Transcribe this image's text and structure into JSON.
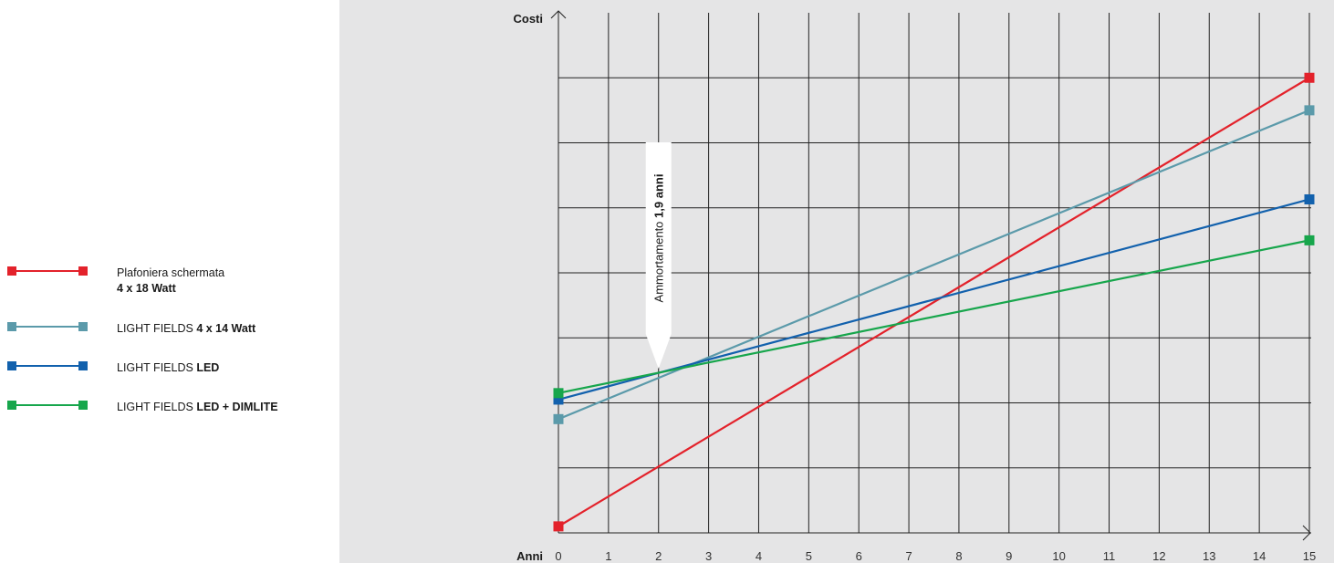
{
  "legend": {
    "items": [
      {
        "text": "Plafoniera schermata",
        "bold": "4 x 18 Watt",
        "bold_newline": true,
        "color": "#e3222b"
      },
      {
        "text": "LIGHT FIELDS",
        "bold": "4 x 14 Watt",
        "bold_newline": false,
        "color": "#5b9aaa"
      },
      {
        "text": "LIGHT FIELDS",
        "bold": "LED",
        "bold_newline": false,
        "color": "#1261ad"
      },
      {
        "text": "LIGHT FIELDS",
        "bold": "LED + DIMLITE",
        "bold_newline": false,
        "color": "#17a64c"
      }
    ]
  },
  "chart_data": {
    "type": "line",
    "xlabel": "Anni",
    "ylabel": "Costi",
    "x_ticks": [
      "0",
      "1",
      "2",
      "3",
      "4",
      "5",
      "6",
      "7",
      "8",
      "9",
      "10",
      "11",
      "12",
      "13",
      "14",
      "15"
    ],
    "xlim": [
      0,
      15
    ],
    "ylim": [
      0,
      8
    ],
    "y_ticks_labeled": false,
    "grid": true,
    "background": "#e5e5e6",
    "series": [
      {
        "name": "Plafoniera schermata 4 x 18 Watt",
        "color": "#e3222b",
        "x": [
          0,
          15
        ],
        "y": [
          0.1,
          7.0
        ]
      },
      {
        "name": "LIGHT FIELDS 4 x 14 Watt",
        "color": "#5b9aaa",
        "x": [
          0,
          15
        ],
        "y": [
          1.75,
          6.5
        ]
      },
      {
        "name": "LIGHT FIELDS LED",
        "color": "#1261ad",
        "x": [
          0,
          15
        ],
        "y": [
          2.05,
          5.13
        ]
      },
      {
        "name": "LIGHT FIELDS LED + DIMLITE",
        "color": "#17a64c",
        "x": [
          0,
          15
        ],
        "y": [
          2.15,
          4.5
        ]
      }
    ],
    "annotation": {
      "prefix": "Ammortamento ",
      "bold": "1,9 anni",
      "x": 1.9
    }
  }
}
